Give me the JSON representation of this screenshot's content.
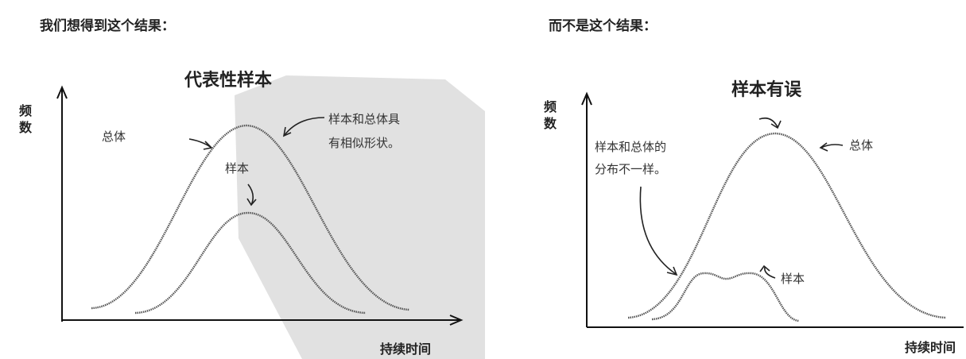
{
  "left": {
    "heading": "我们想得到这个结果：",
    "title": "代表性样本",
    "y_label": [
      "频",
      "数"
    ],
    "x_label": "持续时间",
    "population_label": "总体",
    "sample_label": "样本",
    "note": [
      "样本和总体具",
      "有相似形状。"
    ]
  },
  "right": {
    "heading": "而不是这个结果：",
    "title": "样本有误",
    "y_label": [
      "频",
      "数"
    ],
    "x_label": "持续时间",
    "population_label": "总体",
    "sample_label": "样本",
    "note": [
      "样本和总体的",
      "分布不一样。"
    ]
  }
}
